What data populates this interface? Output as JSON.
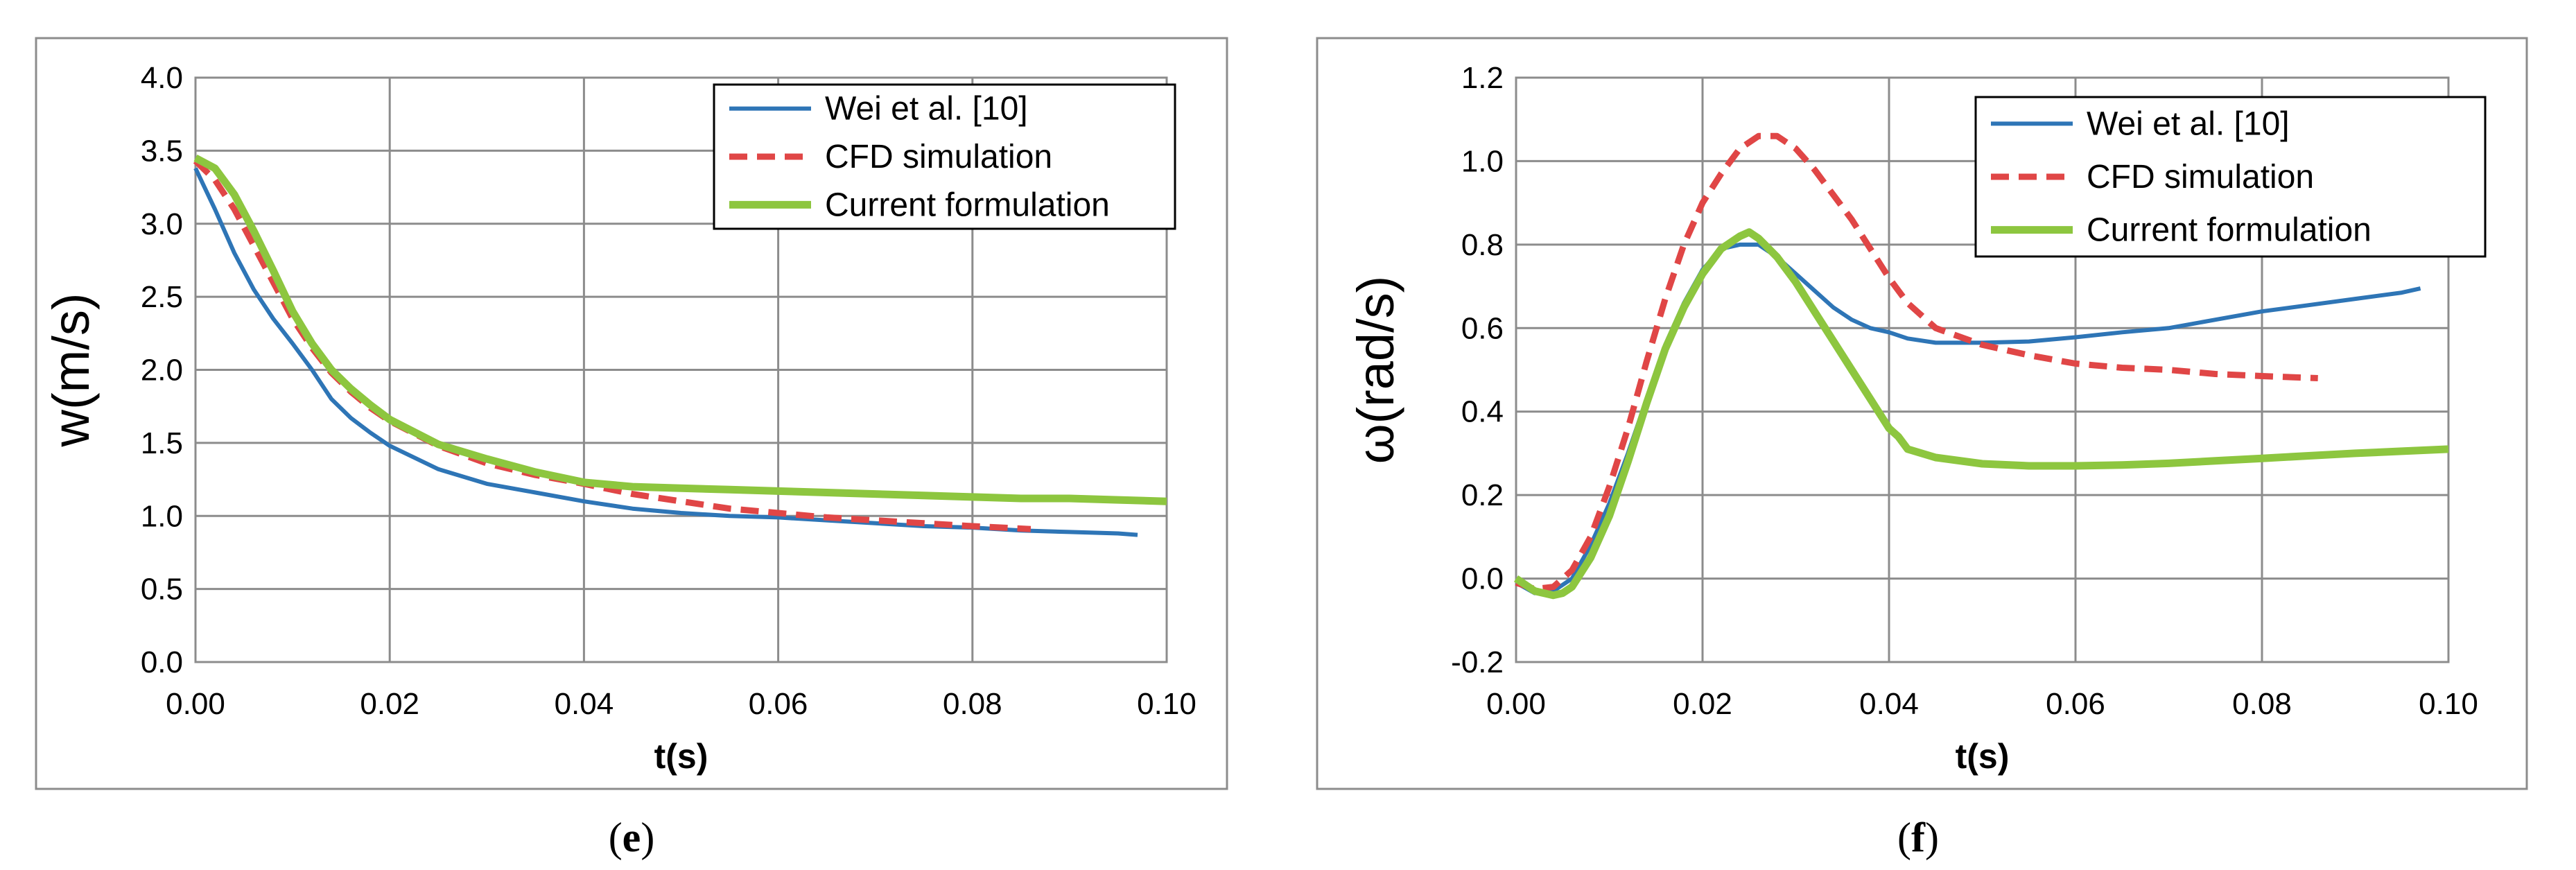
{
  "chart_data": [
    {
      "type": "line",
      "caption": "(e)",
      "caption_paren_open": "(",
      "caption_letter": "e",
      "caption_paren_close": ")",
      "xlabel": "t(s)",
      "ylabel": "w(m/s)",
      "xlim": [
        0,
        0.1
      ],
      "ylim": [
        0,
        4
      ],
      "xticks": [
        0,
        0.02,
        0.04,
        0.06,
        0.08,
        0.1
      ],
      "xtick_labels": [
        "0.00",
        "0.02",
        "0.04",
        "0.06",
        "0.08",
        "0.10"
      ],
      "yticks": [
        0,
        0.5,
        1,
        1.5,
        2,
        2.5,
        3,
        3.5,
        4
      ],
      "ytick_labels": [
        "0.0",
        "0.5",
        "1.0",
        "1.5",
        "2.0",
        "2.5",
        "3.0",
        "3.5",
        "4.0"
      ],
      "grid": true,
      "legend_position": "top-right",
      "series": [
        {
          "name": "Wei et al. [10]",
          "color": "#2e75b6",
          "style": "solid",
          "x": [
            0,
            0.002,
            0.004,
            0.006,
            0.008,
            0.01,
            0.012,
            0.014,
            0.016,
            0.018,
            0.02,
            0.025,
            0.03,
            0.035,
            0.04,
            0.045,
            0.05,
            0.055,
            0.06,
            0.065,
            0.07,
            0.075,
            0.08,
            0.085,
            0.09,
            0.095,
            0.097
          ],
          "y": [
            3.38,
            3.1,
            2.8,
            2.55,
            2.35,
            2.18,
            2.0,
            1.8,
            1.67,
            1.57,
            1.48,
            1.32,
            1.22,
            1.16,
            1.1,
            1.05,
            1.02,
            1.0,
            0.99,
            0.97,
            0.95,
            0.93,
            0.92,
            0.9,
            0.89,
            0.88,
            0.87
          ]
        },
        {
          "name": "CFD simulation",
          "color": "#e04646",
          "style": "dashed",
          "x": [
            0,
            0.002,
            0.004,
            0.006,
            0.008,
            0.01,
            0.012,
            0.014,
            0.016,
            0.018,
            0.02,
            0.025,
            0.03,
            0.035,
            0.04,
            0.045,
            0.05,
            0.055,
            0.06,
            0.065,
            0.07,
            0.075,
            0.08,
            0.086
          ],
          "y": [
            3.43,
            3.3,
            3.1,
            2.85,
            2.6,
            2.35,
            2.15,
            1.98,
            1.85,
            1.74,
            1.65,
            1.48,
            1.36,
            1.28,
            1.22,
            1.15,
            1.1,
            1.05,
            1.02,
            0.99,
            0.97,
            0.95,
            0.93,
            0.91
          ]
        },
        {
          "name": "Current formulation",
          "color": "#8dc63f",
          "style": "solid",
          "x": [
            0,
            0.002,
            0.004,
            0.006,
            0.008,
            0.01,
            0.012,
            0.014,
            0.016,
            0.018,
            0.02,
            0.025,
            0.03,
            0.035,
            0.04,
            0.045,
            0.05,
            0.055,
            0.06,
            0.065,
            0.07,
            0.075,
            0.08,
            0.085,
            0.09,
            0.095,
            0.1
          ],
          "y": [
            3.45,
            3.38,
            3.2,
            2.95,
            2.68,
            2.4,
            2.18,
            2.0,
            1.87,
            1.76,
            1.66,
            1.49,
            1.39,
            1.3,
            1.23,
            1.2,
            1.19,
            1.18,
            1.17,
            1.16,
            1.15,
            1.14,
            1.13,
            1.12,
            1.12,
            1.11,
            1.1
          ]
        }
      ]
    },
    {
      "type": "line",
      "caption": "(f)",
      "caption_paren_open": "(",
      "caption_letter": "f",
      "caption_paren_close": ")",
      "xlabel": "t(s)",
      "ylabel": "ω(rad/s)",
      "xlim": [
        0,
        0.1
      ],
      "ylim": [
        -0.2,
        1.2
      ],
      "xticks": [
        0,
        0.02,
        0.04,
        0.06,
        0.08,
        0.1
      ],
      "xtick_labels": [
        "0.00",
        "0.02",
        "0.04",
        "0.06",
        "0.08",
        "0.10"
      ],
      "yticks": [
        -0.2,
        0,
        0.2,
        0.4,
        0.6,
        0.8,
        1,
        1.2
      ],
      "ytick_labels": [
        "-0.2",
        "0.0",
        "0.2",
        "0.4",
        "0.6",
        "0.8",
        "1.0",
        "1.2"
      ],
      "grid": true,
      "legend_position": "top-right",
      "series": [
        {
          "name": "Wei et al. [10]",
          "color": "#2e75b6",
          "style": "solid",
          "x": [
            0,
            0.002,
            0.004,
            0.006,
            0.008,
            0.01,
            0.012,
            0.014,
            0.016,
            0.018,
            0.02,
            0.022,
            0.024,
            0.026,
            0.028,
            0.03,
            0.032,
            0.034,
            0.036,
            0.038,
            0.04,
            0.042,
            0.045,
            0.05,
            0.055,
            0.06,
            0.065,
            0.07,
            0.075,
            0.08,
            0.085,
            0.09,
            0.095,
            0.097
          ],
          "y": [
            -0.01,
            -0.035,
            -0.03,
            0.0,
            0.08,
            0.18,
            0.3,
            0.43,
            0.56,
            0.66,
            0.74,
            0.79,
            0.8,
            0.8,
            0.77,
            0.73,
            0.69,
            0.65,
            0.62,
            0.6,
            0.59,
            0.575,
            0.565,
            0.565,
            0.568,
            0.578,
            0.59,
            0.6,
            0.62,
            0.64,
            0.655,
            0.67,
            0.685,
            0.695
          ]
        },
        {
          "name": "CFD simulation",
          "color": "#e04646",
          "style": "dashed",
          "x": [
            0,
            0.002,
            0.004,
            0.006,
            0.008,
            0.01,
            0.012,
            0.014,
            0.016,
            0.018,
            0.02,
            0.022,
            0.024,
            0.026,
            0.028,
            0.03,
            0.032,
            0.034,
            0.036,
            0.038,
            0.04,
            0.042,
            0.045,
            0.05,
            0.055,
            0.06,
            0.065,
            0.07,
            0.075,
            0.08,
            0.086
          ],
          "y": [
            -0.01,
            -0.025,
            -0.02,
            0.02,
            0.1,
            0.22,
            0.36,
            0.52,
            0.67,
            0.8,
            0.9,
            0.97,
            1.03,
            1.06,
            1.06,
            1.03,
            0.98,
            0.92,
            0.86,
            0.79,
            0.72,
            0.66,
            0.6,
            0.56,
            0.535,
            0.515,
            0.505,
            0.5,
            0.49,
            0.485,
            0.48
          ]
        },
        {
          "name": "Current formulation",
          "color": "#8dc63f",
          "style": "solid",
          "x": [
            0,
            0.002,
            0.004,
            0.005,
            0.006,
            0.008,
            0.01,
            0.012,
            0.014,
            0.016,
            0.018,
            0.02,
            0.022,
            0.024,
            0.025,
            0.026,
            0.028,
            0.03,
            0.032,
            0.034,
            0.036,
            0.038,
            0.04,
            0.041,
            0.042,
            0.045,
            0.05,
            0.055,
            0.06,
            0.065,
            0.07,
            0.075,
            0.08,
            0.085,
            0.09,
            0.095,
            0.1
          ],
          "y": [
            0.0,
            -0.03,
            -0.04,
            -0.035,
            -0.02,
            0.05,
            0.15,
            0.28,
            0.42,
            0.55,
            0.65,
            0.73,
            0.79,
            0.82,
            0.83,
            0.815,
            0.77,
            0.71,
            0.64,
            0.57,
            0.5,
            0.43,
            0.36,
            0.34,
            0.31,
            0.29,
            0.275,
            0.27,
            0.27,
            0.272,
            0.276,
            0.282,
            0.288,
            0.294,
            0.3,
            0.305,
            0.31
          ]
        }
      ]
    }
  ]
}
